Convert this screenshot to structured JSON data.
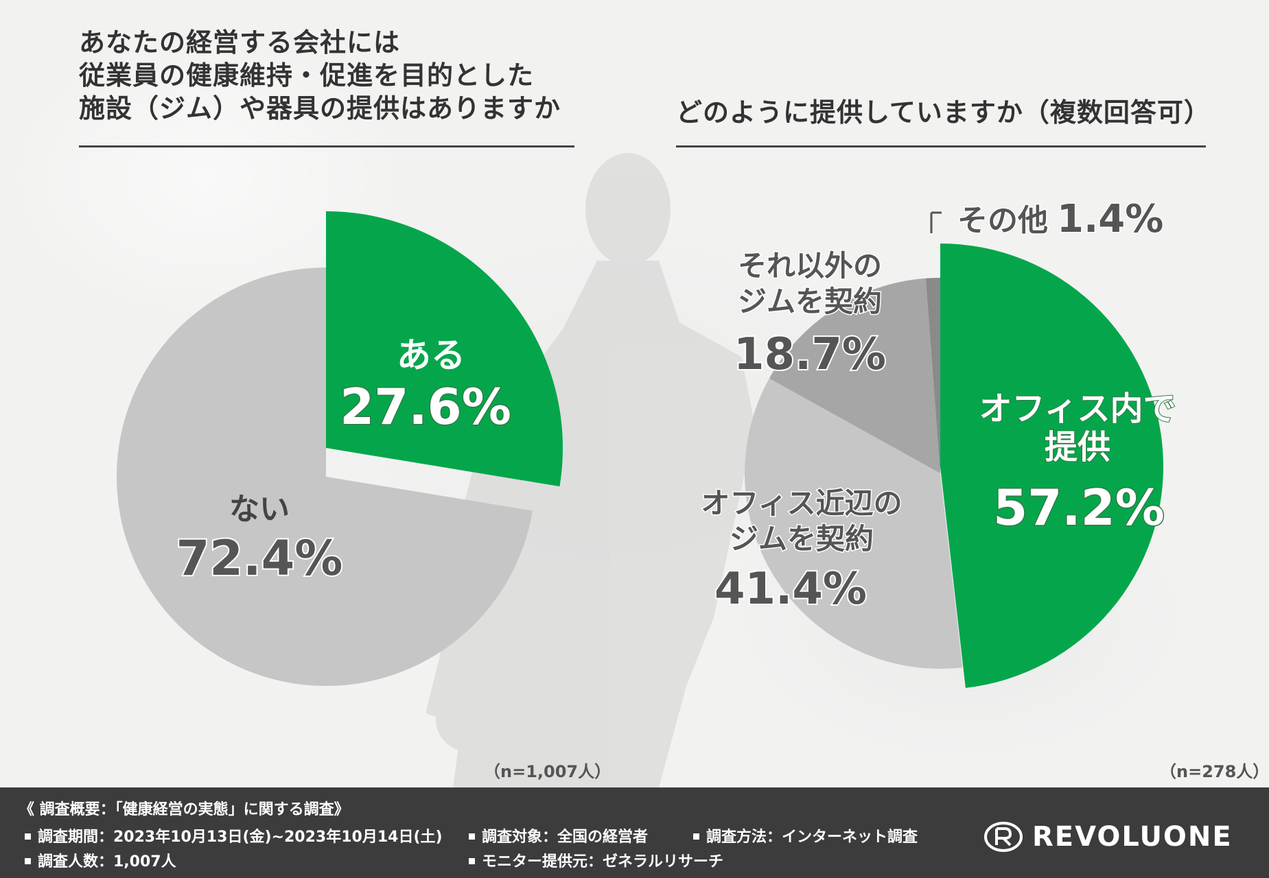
{
  "colors": {
    "green": "#05a64b",
    "light_gray": "#c6c6c6",
    "mid_gray": "#a6a6a6",
    "dark_gray": "#8a8a8a",
    "footer_bg": "#3c3c3c"
  },
  "left": {
    "title_lines": [
      "あなたの経営する会社には",
      "従業員の健康維持・促進を目的とした",
      "施設（ジム）や器具の提供はありますか"
    ],
    "n_label": "（n=1,007人）"
  },
  "right": {
    "title": "どのように提供していますか（複数回答可）",
    "n_label": "（n=278人）"
  },
  "chart_data": [
    {
      "type": "pie",
      "slices": [
        {
          "label": "ある",
          "value": 27.6,
          "value_label": "27.6%",
          "color": "#05a64b"
        },
        {
          "label": "ない",
          "value": 72.4,
          "value_label": "72.4%",
          "color": "#c6c6c6"
        }
      ]
    },
    {
      "type": "pie",
      "slices": [
        {
          "label_lines": [
            "オフィス内で",
            "提供"
          ],
          "value": 57.2,
          "value_label": "57.2%",
          "color": "#05a64b"
        },
        {
          "label_lines": [
            "オフィス近辺の",
            "ジムを契約"
          ],
          "value": 41.4,
          "value_label": "41.4%",
          "color": "#c6c6c6"
        },
        {
          "label_lines": [
            "それ以外の",
            "ジムを契約"
          ],
          "value": 18.7,
          "value_label": "18.7%",
          "color": "#a6a6a6"
        },
        {
          "label_lines": [
            "その他"
          ],
          "value": 1.4,
          "value_label": "1.4%",
          "color": "#8a8a8a"
        }
      ]
    }
  ],
  "footer": {
    "heading": "《 調査概要：「健康経営の実態」に関する調査》",
    "period": "調査期間：2023年10月13日(金)~2023年10月14日(土)",
    "target": "調査対象：全国の経営者",
    "method": "調査方法：インターネット調査",
    "count": "調査人数：1,007人",
    "panel": "モニター提供元：ゼネラルリサーチ",
    "logo_text": "REVOLUONE"
  }
}
